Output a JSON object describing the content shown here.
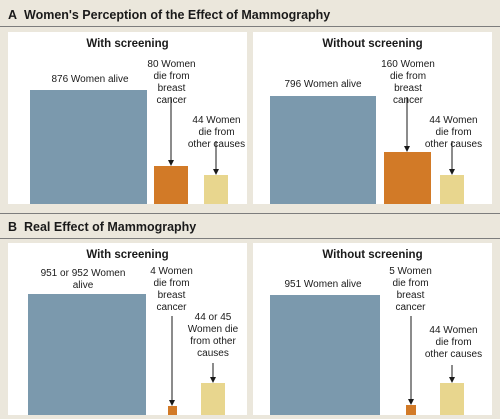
{
  "colors": {
    "alive": "#7b99ad",
    "breast_cancer": "#d27a27",
    "other_causes": "#e8d68e",
    "background": "#ebe7dc"
  },
  "section_a": {
    "letter": "A",
    "title": "Women's Perception of the Effect of Mammography"
  },
  "section_b": {
    "letter": "B",
    "title": "Real Effect of Mammography"
  },
  "chart_data": [
    {
      "type": "bar",
      "title": "With screening",
      "categories": [
        "876 Women alive",
        "80 Women die from breast cancer",
        "44 Women die from other causes"
      ],
      "values": [
        876,
        80,
        44
      ],
      "labels": [
        "876 Women alive",
        "80 Women die from breast cancer",
        "44 Women die from other causes"
      ]
    },
    {
      "type": "bar",
      "title": "Without screening",
      "categories": [
        "796 Women alive",
        "160 Women die from breast cancer",
        "44 Women die from other causes"
      ],
      "values": [
        796,
        160,
        44
      ],
      "labels": [
        "796 Women alive",
        "160 Women die from breast cancer",
        "44 Women die from other causes"
      ]
    },
    {
      "type": "bar",
      "title": "With screening",
      "categories": [
        "951 or 952 Women alive",
        "4 Women die from breast cancer",
        "44 or 45 Women die from other causes"
      ],
      "values": [
        951.5,
        4,
        44.5
      ],
      "labels": [
        "951 or 952 Women alive",
        "4 Women die from breast cancer",
        "44 or 45 Women die from other causes"
      ]
    },
    {
      "type": "bar",
      "title": "Without screening",
      "categories": [
        "951 Women alive",
        "5 Women die from breast cancer",
        "44 Women die from other causes"
      ],
      "values": [
        951,
        5,
        44
      ],
      "labels": [
        "951 Women alive",
        "5 Women die from breast cancer",
        "44 Women die from other causes"
      ]
    }
  ]
}
